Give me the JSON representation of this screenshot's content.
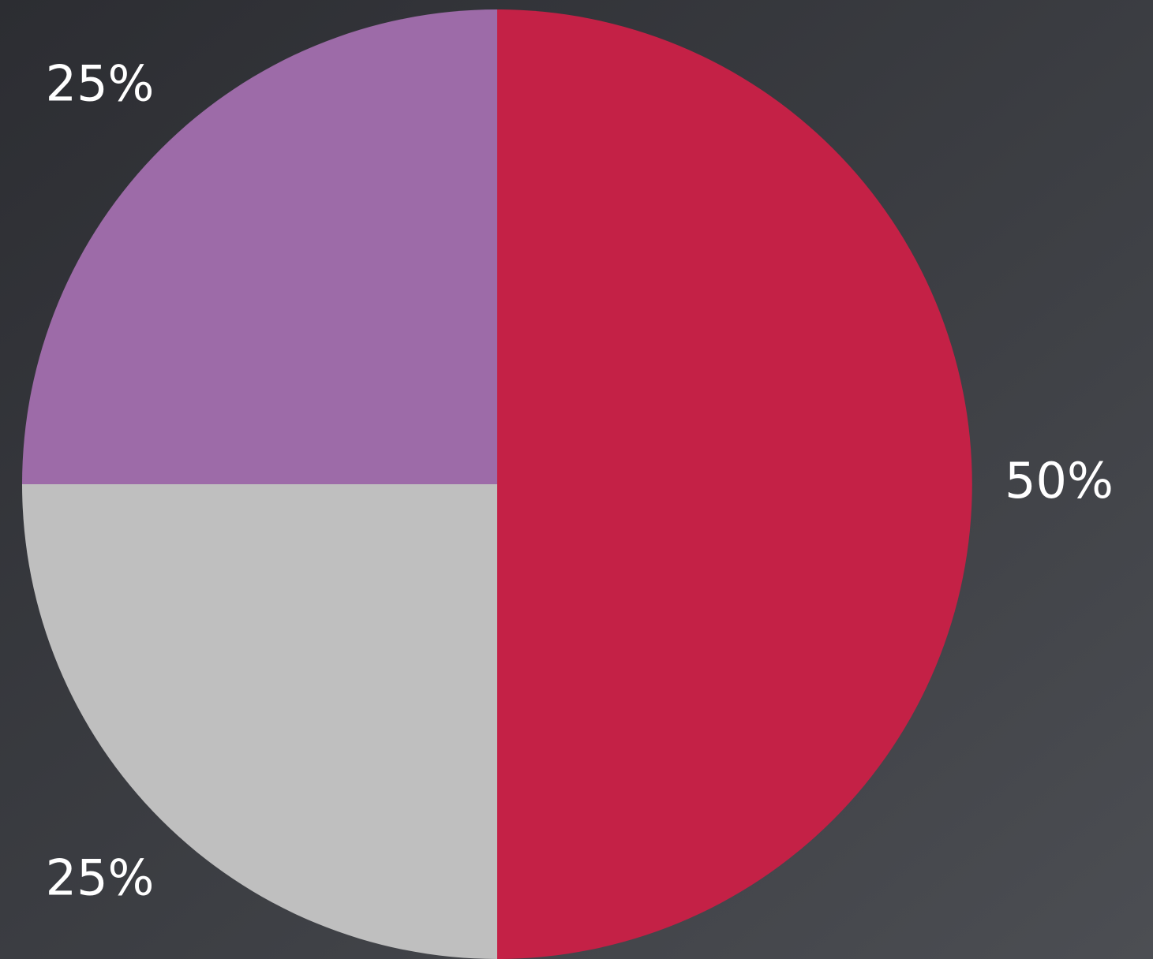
{
  "chart_data": {
    "type": "pie",
    "values": [
      50,
      25,
      25
    ],
    "value_labels": [
      "50%",
      "25%",
      "25%"
    ],
    "colors": [
      "#c42146",
      "#bfbfbf",
      "#9d6ba8"
    ]
  }
}
